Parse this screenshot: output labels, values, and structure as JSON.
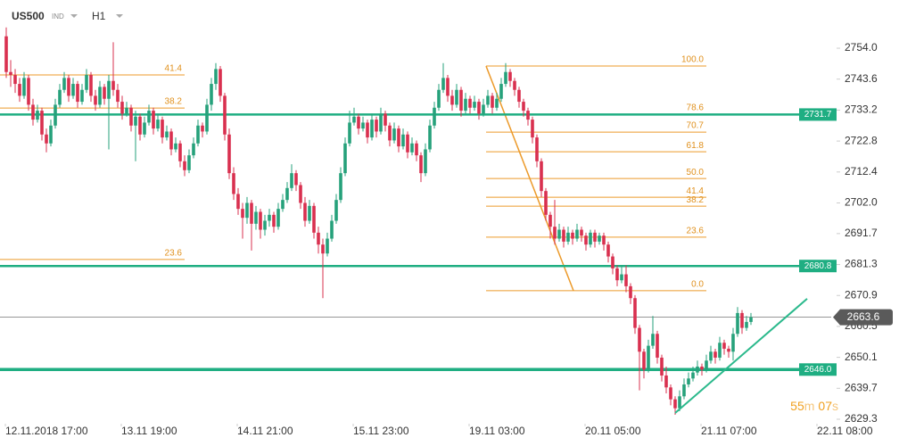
{
  "header": {
    "symbol": "US500",
    "market": "IND",
    "interval": "H1"
  },
  "chart_data": {
    "type": "candlestick",
    "up_color": "#26a17b",
    "down_color": "#d9304f",
    "xlim": [
      -1.4,
      182.6
    ],
    "ylim": [
      2627.8,
      2770.2
    ],
    "yticks": [
      {
        "value": 2754,
        "label": "2754.0"
      },
      2743.6,
      2733.2,
      2722.8,
      2712.4,
      {
        "value": 2702,
        "label": "2702.0"
      },
      2691.7,
      2681.3,
      2670.9,
      2660.5,
      2650.1,
      2639.7,
      2629.3
    ],
    "xticks": [
      {
        "value": 0,
        "label": "12.11.2018 17:00"
      },
      {
        "value": 26,
        "label": "13.11 19:00"
      },
      {
        "value": 52,
        "label": "14.11 21:00"
      },
      {
        "value": 78,
        "label": "15.11 23:00"
      },
      {
        "value": 104,
        "label": "19.11 03:00"
      },
      {
        "value": 130,
        "label": "20.11 05:00"
      },
      {
        "value": 156,
        "label": "21.11 07:00"
      },
      {
        "value": 182,
        "label": "22.11 08:00"
      }
    ],
    "candles": [
      [
        2758,
        2761,
        2744,
        2746
      ],
      [
        2746,
        2750,
        2741,
        2745
      ],
      [
        2745,
        2747,
        2739,
        2742
      ],
      [
        2742,
        2744,
        2736,
        2738
      ],
      [
        2738,
        2746,
        2737,
        2744
      ],
      [
        2744,
        2745,
        2733,
        2735
      ],
      [
        2735,
        2737,
        2728,
        2730
      ],
      [
        2730,
        2735,
        2729,
        2733
      ],
      [
        2733,
        2734,
        2723,
        2725
      ],
      [
        2725,
        2727,
        2719,
        2722
      ],
      [
        2722,
        2730,
        2721,
        2728
      ],
      [
        2728,
        2737,
        2727,
        2735
      ],
      [
        2735,
        2742,
        2734,
        2740
      ],
      [
        2740,
        2746,
        2739,
        2744
      ],
      [
        2744,
        2745,
        2736,
        2738
      ],
      [
        2738,
        2744,
        2737,
        2742
      ],
      [
        2742,
        2743,
        2734,
        2736
      ],
      [
        2736,
        2742,
        2735,
        2740
      ],
      [
        2740,
        2747,
        2739,
        2745
      ],
      [
        2745,
        2746,
        2736,
        2738
      ],
      [
        2738,
        2740,
        2733,
        2735
      ],
      [
        2735,
        2743,
        2734,
        2741
      ],
      [
        2741,
        2742,
        2735,
        2737
      ],
      [
        2737,
        2745,
        2720,
        2743
      ],
      [
        2743,
        2756,
        2738,
        2740
      ],
      [
        2740,
        2742,
        2734,
        2736
      ],
      [
        2736,
        2738,
        2730,
        2732
      ],
      [
        2732,
        2736,
        2731,
        2734
      ],
      [
        2734,
        2735,
        2726,
        2728
      ],
      [
        2728,
        2733,
        2716,
        2731
      ],
      [
        2731,
        2732,
        2723,
        2725
      ],
      [
        2725,
        2731,
        2724,
        2729
      ],
      [
        2729,
        2735,
        2728,
        2733
      ],
      [
        2733,
        2734,
        2725,
        2727
      ],
      [
        2727,
        2732,
        2726,
        2730
      ],
      [
        2730,
        2731,
        2722,
        2724
      ],
      [
        2724,
        2728,
        2723,
        2726
      ],
      [
        2726,
        2727,
        2718,
        2720
      ],
      [
        2720,
        2724,
        2719,
        2722
      ],
      [
        2722,
        2723,
        2714,
        2716
      ],
      [
        2716,
        2718,
        2711,
        2713
      ],
      [
        2713,
        2720,
        2712,
        2718
      ],
      [
        2718,
        2724,
        2717,
        2722
      ],
      [
        2722,
        2730,
        2721,
        2728
      ],
      [
        2728,
        2729,
        2724,
        2726
      ],
      [
        2726,
        2737,
        2725,
        2735
      ],
      [
        2735,
        2744,
        2733,
        2742
      ],
      [
        2742,
        2749,
        2740,
        2747
      ],
      [
        2747,
        2748,
        2736,
        2738
      ],
      [
        2738,
        2739,
        2723,
        2725
      ],
      [
        2725,
        2727,
        2710,
        2712
      ],
      [
        2712,
        2714,
        2703,
        2705
      ],
      [
        2705,
        2707,
        2698,
        2700
      ],
      [
        2700,
        2702,
        2690,
        2697
      ],
      [
        2697,
        2704,
        2695,
        2702
      ],
      [
        2702,
        2703,
        2686,
        2695
      ],
      [
        2695,
        2701,
        2693,
        2699
      ],
      [
        2699,
        2700,
        2690,
        2693
      ],
      [
        2693,
        2698,
        2691,
        2696
      ],
      [
        2696,
        2700,
        2694,
        2698
      ],
      [
        2698,
        2699,
        2692,
        2694
      ],
      [
        2694,
        2702,
        2693,
        2700
      ],
      [
        2700,
        2705,
        2699,
        2703
      ],
      [
        2703,
        2709,
        2702,
        2707
      ],
      [
        2707,
        2715,
        2706,
        2712
      ],
      [
        2712,
        2713,
        2706,
        2708
      ],
      [
        2708,
        2709,
        2700,
        2702
      ],
      [
        2702,
        2704,
        2694,
        2696
      ],
      [
        2696,
        2703,
        2695,
        2701
      ],
      [
        2701,
        2702,
        2690,
        2692
      ],
      [
        2692,
        2694,
        2685,
        2688
      ],
      [
        2688,
        2690,
        2670,
        2685
      ],
      [
        2685,
        2692,
        2684,
        2690
      ],
      [
        2690,
        2698,
        2689,
        2696
      ],
      [
        2696,
        2705,
        2695,
        2703
      ],
      [
        2703,
        2714,
        2702,
        2712
      ],
      [
        2712,
        2724,
        2711,
        2722
      ],
      [
        2722,
        2733,
        2721,
        2729
      ],
      [
        2729,
        2734,
        2728,
        2731
      ],
      [
        2731,
        2732,
        2725,
        2727
      ],
      [
        2727,
        2731,
        2726,
        2729
      ],
      [
        2729,
        2730,
        2722,
        2724
      ],
      [
        2724,
        2732,
        2723,
        2730
      ],
      [
        2730,
        2731,
        2724,
        2726
      ],
      [
        2726,
        2734,
        2725,
        2732
      ],
      [
        2732,
        2733,
        2726,
        2728
      ],
      [
        2728,
        2729,
        2721,
        2723
      ],
      [
        2723,
        2729,
        2722,
        2727
      ],
      [
        2727,
        2728,
        2719,
        2721
      ],
      [
        2721,
        2727,
        2720,
        2725
      ],
      [
        2725,
        2726,
        2717,
        2719
      ],
      [
        2719,
        2724,
        2718,
        2722
      ],
      [
        2722,
        2723,
        2716,
        2718
      ],
      [
        2718,
        2719,
        2709,
        2712
      ],
      [
        2712,
        2722,
        2711,
        2720
      ],
      [
        2720,
        2730,
        2719,
        2728
      ],
      [
        2728,
        2736,
        2727,
        2734
      ],
      [
        2734,
        2742,
        2733,
        2740
      ],
      [
        2740,
        2749,
        2739,
        2744
      ],
      [
        2744,
        2745,
        2736,
        2738
      ],
      [
        2738,
        2740,
        2733,
        2735
      ],
      [
        2735,
        2742,
        2734,
        2740
      ],
      [
        2740,
        2741,
        2731,
        2733
      ],
      [
        2733,
        2739,
        2732,
        2737
      ],
      [
        2737,
        2738,
        2732,
        2734
      ],
      [
        2734,
        2738,
        2733,
        2736
      ],
      [
        2736,
        2737,
        2730,
        2732
      ],
      [
        2732,
        2737,
        2731,
        2735
      ],
      [
        2735,
        2740,
        2734,
        2738
      ],
      [
        2738,
        2739,
        2732,
        2734
      ],
      [
        2734,
        2739,
        2733,
        2737
      ],
      [
        2737,
        2744,
        2736,
        2742
      ],
      [
        2742,
        2749,
        2741,
        2746
      ],
      [
        2746,
        2747,
        2741,
        2743
      ],
      [
        2743,
        2744,
        2738,
        2740
      ],
      [
        2740,
        2741,
        2734,
        2736
      ],
      [
        2736,
        2737,
        2731,
        2733
      ],
      [
        2733,
        2734,
        2728,
        2730
      ],
      [
        2730,
        2731,
        2722,
        2724
      ],
      [
        2724,
        2725,
        2714,
        2716
      ],
      [
        2716,
        2717,
        2704,
        2706
      ],
      [
        2706,
        2707,
        2696,
        2698
      ],
      [
        2698,
        2699,
        2690,
        2694
      ],
      [
        2694,
        2703,
        2688,
        2690
      ],
      [
        2690,
        2695,
        2689,
        2693
      ],
      [
        2693,
        2694,
        2687,
        2689
      ],
      [
        2689,
        2694,
        2688,
        2692
      ],
      [
        2692,
        2693,
        2688,
        2690
      ],
      [
        2690,
        2695,
        2689,
        2693
      ],
      [
        2693,
        2694,
        2689,
        2691
      ],
      [
        2691,
        2692,
        2686,
        2688
      ],
      [
        2688,
        2693,
        2687,
        2692
      ],
      [
        2692,
        2693,
        2687,
        2689
      ],
      [
        2689,
        2692,
        2688,
        2691
      ],
      [
        2691,
        2692,
        2686,
        2688
      ],
      [
        2688,
        2689,
        2682,
        2684
      ],
      [
        2684,
        2685,
        2678,
        2680
      ],
      [
        2680,
        2681,
        2674,
        2676
      ],
      [
        2676,
        2681,
        2675,
        2678
      ],
      [
        2678,
        2681,
        2672,
        2674
      ],
      [
        2674,
        2675,
        2668,
        2670
      ],
      [
        2670,
        2671,
        2658,
        2660
      ],
      [
        2660,
        2661,
        2639,
        2652
      ],
      [
        2652,
        2653,
        2643,
        2646
      ],
      [
        2646,
        2656,
        2645,
        2654
      ],
      [
        2654,
        2664,
        2653,
        2658
      ],
      [
        2658,
        2659,
        2648,
        2650
      ],
      [
        2650,
        2651,
        2642,
        2644
      ],
      [
        2644,
        2647,
        2638,
        2640
      ],
      [
        2640,
        2641,
        2634,
        2636
      ],
      [
        2636,
        2637,
        2630.8,
        2633
      ],
      [
        2633,
        2639,
        2632,
        2637
      ],
      [
        2637,
        2643,
        2636,
        2641
      ],
      [
        2641,
        2645,
        2640,
        2643
      ],
      [
        2643,
        2647,
        2642,
        2645
      ],
      [
        2645,
        2649,
        2644,
        2647
      ],
      [
        2647,
        2648,
        2644,
        2646
      ],
      [
        2646,
        2651,
        2645,
        2649
      ],
      [
        2649,
        2654,
        2648,
        2652
      ],
      [
        2652,
        2653,
        2648,
        2650
      ],
      [
        2650,
        2657,
        2649,
        2655
      ],
      [
        2655,
        2656,
        2651,
        2653
      ],
      [
        2653,
        2654,
        2650,
        2652
      ],
      [
        2652,
        2660,
        2649,
        2658
      ],
      [
        2658,
        2667,
        2657,
        2665
      ],
      [
        2665,
        2666,
        2658,
        2660
      ],
      [
        2660,
        2664,
        2659,
        2662
      ],
      [
        2662,
        2665,
        2661,
        2663.6
      ]
    ],
    "levels": [
      2731.7,
      2680.8,
      {
        "value": 2646,
        "label": "2646.0"
      }
    ],
    "level_color": "#1fae82",
    "current_price": 2663.6,
    "fib_color": "#ec9a2a",
    "fib_left": {
      "from": -1.4,
      "to": 40,
      "levels": [
        {
          "level": "41.4",
          "price": 2745
        },
        {
          "level": "38.2",
          "price": 2733.9
        },
        {
          "level": "23.6",
          "price": 2683
        }
      ]
    },
    "fib_right": {
      "from": 107.6,
      "to": 157,
      "line": [
        [
          107.6,
          2748
        ],
        [
          127.2,
          2672.5
        ]
      ],
      "levels": [
        {
          "level": "100.0",
          "price": 2748
        },
        {
          "level": "78.6",
          "price": 2731.8
        },
        {
          "level": "70.7",
          "price": 2725.8
        },
        {
          "level": "61.8",
          "price": 2719.2
        },
        {
          "level": "50.0",
          "price": 2710.2
        },
        {
          "level": "41.4",
          "price": 2703.9
        },
        {
          "level": "38.2",
          "price": 2700.9
        },
        {
          "level": "23.6",
          "price": 2690.5
        },
        {
          "level": "0.0",
          "price": 2672.5
        }
      ]
    },
    "trendline": [
      [
        150,
        2631.4
      ],
      [
        179.6,
        2669.8
      ]
    ],
    "timer": {
      "minutes": "55",
      "m": "m",
      "seconds": "07",
      "s": "s"
    }
  }
}
